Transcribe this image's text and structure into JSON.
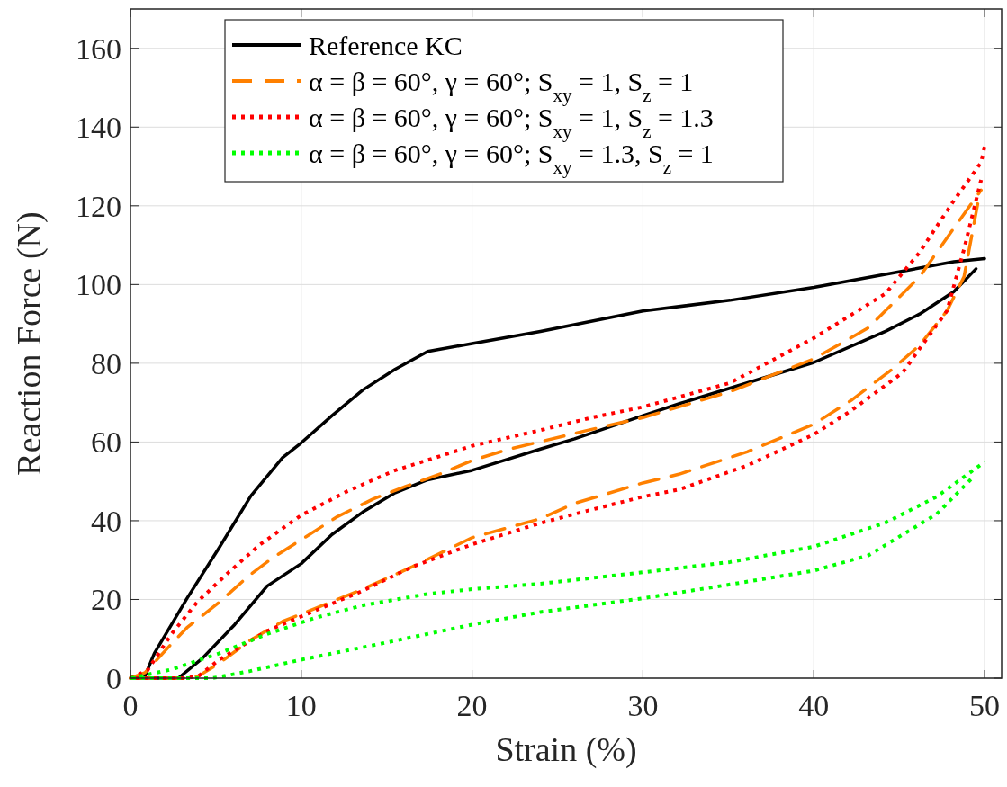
{
  "chart_data": {
    "type": "line",
    "xlabel": "Strain (%)",
    "ylabel": "Reaction Force (N)",
    "xlim": [
      0,
      51
    ],
    "ylim": [
      0,
      170
    ],
    "xticks": [
      0,
      10,
      20,
      30,
      40,
      50
    ],
    "yticks": [
      0,
      20,
      40,
      60,
      80,
      100,
      120,
      140,
      160
    ],
    "grid": true,
    "legend": "top",
    "series": [
      {
        "name": "Reference KC",
        "color": "#000000",
        "line_style": "solid",
        "x": [
          0,
          0.8,
          1.4,
          3.3,
          5.2,
          7.05,
          8.9,
          10,
          11.8,
          13.6,
          15.5,
          17.4,
          20,
          24,
          30,
          35.1,
          40,
          45.2,
          48.2,
          50
        ],
        "values": [
          0,
          0,
          6.3,
          20.2,
          33.2,
          46.3,
          56,
          59.8,
          66.7,
          73.2,
          78.5,
          83,
          85,
          88.1,
          93.3,
          96,
          99.3,
          103.4,
          105.8,
          106.6
        ]
      },
      {
        "color": "#000000",
        "line_style": "solid",
        "x": [
          49.5,
          48.2,
          46.2,
          44.2,
          40,
          36.1,
          32.1,
          30,
          26,
          24,
          20,
          17.4,
          15.5,
          13.6,
          11.8,
          10,
          8,
          6.1,
          4.2,
          2.8,
          0
        ],
        "values": [
          104,
          98.2,
          92.5,
          88.1,
          80.2,
          75,
          69.7,
          66.7,
          60.8,
          58.2,
          52.8,
          50.4,
          47.1,
          42.2,
          36.5,
          29.1,
          23.4,
          13.6,
          5,
          0,
          0
        ]
      },
      {
        "name": "α = β = 60°, γ = 60°; S$_{xy}$ = 1, S$_{z}$ = 1",
        "color": "#ff8000",
        "line_style": "dashed",
        "x": [
          0,
          0.85,
          2.4,
          3.3,
          5.2,
          6.9,
          8.4,
          10.3,
          12.1,
          14.2,
          16.1,
          18.2,
          20,
          22.1,
          26.6,
          30,
          35.1,
          40,
          43.2,
          46.2,
          48.2,
          49.8
        ],
        "values": [
          0,
          1.4,
          8.7,
          12.8,
          19.3,
          25.9,
          30.8,
          36,
          41,
          45.5,
          48.7,
          52,
          55.3,
          58.1,
          62.8,
          66.2,
          72.8,
          81.1,
          89,
          102,
          114.3,
          124
        ]
      },
      {
        "color": "#ff8000",
        "line_style": "dashed",
        "x": [
          49.6,
          48.8,
          47.8,
          46.2,
          44.6,
          42.2,
          40,
          36.1,
          32.1,
          30,
          26,
          24,
          20,
          16.5,
          13.6,
          10.8,
          8.9,
          7,
          5.2,
          4,
          3.3,
          0
        ],
        "values": [
          120.5,
          102,
          93.3,
          84.6,
          78.5,
          70.6,
          64.5,
          57.5,
          51.8,
          49.6,
          44.4,
          40.5,
          35.7,
          28.3,
          22.6,
          17.7,
          14.4,
          9.6,
          3.8,
          0.6,
          0,
          0
        ]
      },
      {
        "name": "α = β = 60°, γ = 60°; S$_{xy}$ = 1, S$_{z}$ = 1.3",
        "color": "#ff0000",
        "line_style": "dotted",
        "x": [
          0,
          1,
          2.4,
          3.9,
          5.7,
          7.6,
          10,
          12.7,
          15.5,
          20,
          24,
          27.1,
          30,
          35.1,
          40,
          44.2,
          46.2,
          48.2,
          49.8,
          50
        ],
        "values": [
          0,
          2,
          11.2,
          19.3,
          26.7,
          34,
          41.4,
          47.5,
          52.8,
          59,
          63,
          66.3,
          68.9,
          75,
          86.4,
          97.7,
          108.2,
          121.3,
          131,
          135
        ]
      },
      {
        "color": "#ff0000",
        "line_style": "dotted",
        "x": [
          49.8,
          48.8,
          47.8,
          46.2,
          45.2,
          42.2,
          40,
          36.1,
          32.1,
          30,
          26,
          24,
          20,
          16.5,
          13.6,
          10,
          8,
          6.1,
          5.2,
          4,
          3.3,
          0
        ],
        "values": [
          126.6,
          109,
          93.3,
          83.7,
          77.6,
          68,
          61.9,
          54,
          47.9,
          46.1,
          41.7,
          39.4,
          34,
          28.3,
          22.2,
          15.7,
          12,
          7.1,
          4.7,
          0.6,
          0,
          0
        ]
      },
      {
        "name": "α = β = 60°, γ = 60°; S$_{xy}$ = 1.3, S$_{z}$ = 1",
        "color": "#00ff00",
        "line_style": "dotted",
        "x": [
          0,
          2.4,
          5.2,
          8,
          10.8,
          13.6,
          17.4,
          20,
          24,
          30,
          35.1,
          40,
          44.2,
          47.2,
          50
        ],
        "values": [
          0,
          2.2,
          6.3,
          11.2,
          15.3,
          18.5,
          21.4,
          22.6,
          24,
          26.9,
          29.5,
          33.4,
          39.5,
          46.1,
          54.9
        ]
      },
      {
        "color": "#00ff00",
        "line_style": "dotted",
        "x": [
          49.2,
          47.2,
          43.2,
          40,
          35.1,
          30,
          24,
          20,
          14.6,
          10,
          7,
          4.8,
          0
        ],
        "values": [
          50.5,
          41.7,
          31.2,
          27.3,
          23.8,
          20.3,
          16.8,
          13.6,
          8.7,
          4.7,
          1.8,
          0,
          0
        ]
      }
    ]
  }
}
